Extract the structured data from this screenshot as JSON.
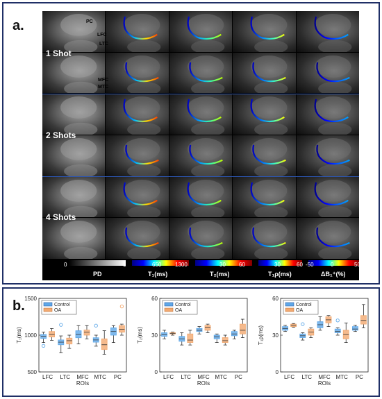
{
  "panel_a": {
    "label": "a.",
    "rows": [
      "1 Shot",
      "2 Shots",
      "4 Shots"
    ],
    "roi_labels": [
      {
        "text": "PC",
        "color": "#3fa0ff"
      },
      {
        "text": "LFC",
        "color": "#e03030"
      },
      {
        "text": "LTC",
        "color": "#30c040"
      },
      {
        "text": "MFC",
        "color": "#20c0e0"
      },
      {
        "text": "MTC",
        "color": "#f0b020"
      }
    ],
    "colorbars": [
      {
        "ticks": [
          "0",
          "1"
        ],
        "title": "PD",
        "colormap": "gray"
      },
      {
        "ticks": [
          "650",
          "1300"
        ],
        "title": "T₁(ms)",
        "colormap": "jet"
      },
      {
        "ticks": [
          "30",
          "60"
        ],
        "title": "T₂(ms)",
        "colormap": "jet"
      },
      {
        "ticks": [
          "30",
          "60"
        ],
        "title": "T₁ρ(ms)",
        "colormap": "jet"
      },
      {
        "ticks": [
          "-50",
          "0",
          "50"
        ],
        "title": "ΔB₁⁺(%)",
        "colormap": "jet"
      }
    ]
  },
  "panel_b": {
    "label": "b.",
    "legend": [
      "Control",
      "OA"
    ],
    "colors": {
      "control": "#5fa8e8",
      "oa": "#f2a970",
      "whisker": "#111111"
    },
    "xlabel": "ROIs"
  },
  "chart_data": [
    {
      "type": "box",
      "ylabel": "T₁(ms)",
      "ylim": [
        500,
        1500
      ],
      "yticks": [
        500,
        1000,
        1500
      ],
      "categories": [
        "LFC",
        "LTC",
        "MFC",
        "MTC",
        "PC"
      ],
      "xlabel": "ROIs",
      "series": [
        {
          "name": "Control",
          "boxes": [
            {
              "min": 900,
              "q1": 955,
              "median": 985,
              "q3": 1010,
              "max": 1040,
              "outliers": [
                855
              ]
            },
            {
              "min": 760,
              "q1": 870,
              "median": 905,
              "q3": 935,
              "max": 990,
              "outliers": [
                1140
              ]
            },
            {
              "min": 880,
              "q1": 965,
              "median": 1010,
              "q3": 1060,
              "max": 1130,
              "outliers": []
            },
            {
              "min": 850,
              "q1": 905,
              "median": 935,
              "q3": 965,
              "max": 1000,
              "outliers": [
                1130
              ]
            },
            {
              "min": 900,
              "q1": 1000,
              "median": 1050,
              "q3": 1100,
              "max": 1130,
              "outliers": []
            }
          ]
        },
        {
          "name": "OA",
          "boxes": [
            {
              "min": 930,
              "q1": 975,
              "median": 1010,
              "q3": 1050,
              "max": 1090,
              "outliers": []
            },
            {
              "min": 820,
              "q1": 880,
              "median": 925,
              "q3": 960,
              "max": 1000,
              "outliers": []
            },
            {
              "min": 950,
              "q1": 1000,
              "median": 1040,
              "q3": 1070,
              "max": 1130,
              "outliers": []
            },
            {
              "min": 740,
              "q1": 805,
              "median": 870,
              "q3": 950,
              "max": 1060,
              "outliers": []
            },
            {
              "min": 1000,
              "q1": 1040,
              "median": 1080,
              "q3": 1130,
              "max": 1150,
              "outliers": [
                1390
              ]
            }
          ]
        }
      ]
    },
    {
      "type": "box",
      "ylabel": "T₂(ms)",
      "ylim": [
        0,
        60
      ],
      "yticks": [
        0,
        30,
        60
      ],
      "categories": [
        "LFC",
        "LTC",
        "MFC",
        "MTC",
        "PC"
      ],
      "xlabel": "ROIs",
      "series": [
        {
          "name": "Control",
          "boxes": [
            {
              "min": 27,
              "q1": 29,
              "median": 30.5,
              "q3": 32,
              "max": 34,
              "outliers": []
            },
            {
              "min": 22,
              "q1": 25,
              "median": 27,
              "q3": 29,
              "max": 32,
              "outliers": []
            },
            {
              "min": 31,
              "q1": 33,
              "median": 34,
              "q3": 35.5,
              "max": 37,
              "outliers": []
            },
            {
              "min": 24,
              "q1": 27,
              "median": 28.5,
              "q3": 30,
              "max": 31,
              "outliers": []
            },
            {
              "min": 27,
              "q1": 29.5,
              "median": 31,
              "q3": 33,
              "max": 34,
              "outliers": []
            }
          ]
        },
        {
          "name": "OA",
          "boxes": [
            {
              "min": 30,
              "q1": 31,
              "median": 31.5,
              "q3": 32,
              "max": 32.5,
              "outliers": []
            },
            {
              "min": 22,
              "q1": 24,
              "median": 26,
              "q3": 31,
              "max": 34,
              "outliers": []
            },
            {
              "min": 32,
              "q1": 34,
              "median": 36.5,
              "q3": 38,
              "max": 39,
              "outliers": []
            },
            {
              "min": 22,
              "q1": 24,
              "median": 25.5,
              "q3": 28,
              "max": 30,
              "outliers": []
            },
            {
              "min": 28,
              "q1": 31,
              "median": 34,
              "q3": 39,
              "max": 43,
              "outliers": []
            }
          ]
        }
      ]
    },
    {
      "type": "box",
      "ylabel": "T₁ρ(ms)",
      "ylim": [
        0,
        60
      ],
      "yticks": [
        0,
        30,
        60
      ],
      "categories": [
        "LFC",
        "LTC",
        "MFC",
        "MTC",
        "PC"
      ],
      "xlabel": "ROIs",
      "series": [
        {
          "name": "Control",
          "boxes": [
            {
              "min": 33,
              "q1": 34,
              "median": 35.5,
              "q3": 37,
              "max": 38,
              "outliers": []
            },
            {
              "min": 26,
              "q1": 28,
              "median": 29.5,
              "q3": 31,
              "max": 32,
              "outliers": [
                39
              ]
            },
            {
              "min": 34,
              "q1": 36,
              "median": 38.5,
              "q3": 41,
              "max": 45,
              "outliers": []
            },
            {
              "min": 30,
              "q1": 32,
              "median": 33,
              "q3": 35,
              "max": 36,
              "outliers": [
                42
              ]
            },
            {
              "min": 33,
              "q1": 34,
              "median": 35,
              "q3": 37,
              "max": 38,
              "outliers": []
            }
          ]
        },
        {
          "name": "OA",
          "boxes": [
            {
              "min": 36.5,
              "q1": 37,
              "median": 38,
              "q3": 39,
              "max": 39.5,
              "outliers": []
            },
            {
              "min": 28,
              "q1": 30,
              "median": 32.5,
              "q3": 35,
              "max": 36,
              "outliers": []
            },
            {
              "min": 37,
              "q1": 40,
              "median": 42.5,
              "q3": 45,
              "max": 46,
              "outliers": []
            },
            {
              "min": 24,
              "q1": 27,
              "median": 30.5,
              "q3": 34,
              "max": 40,
              "outliers": []
            },
            {
              "min": 36,
              "q1": 39,
              "median": 42,
              "q3": 46,
              "max": 55,
              "outliers": []
            }
          ]
        }
      ]
    }
  ]
}
